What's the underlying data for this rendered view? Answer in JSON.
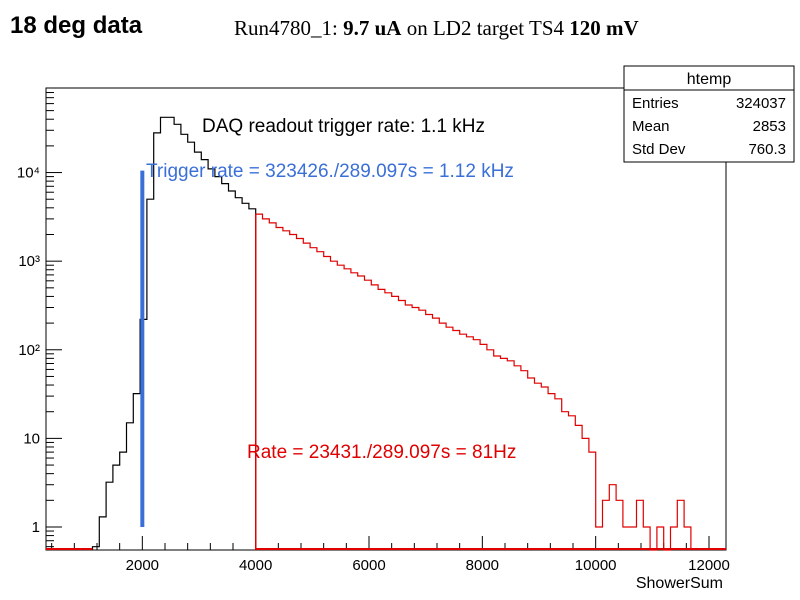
{
  "page": {
    "title": "18 deg data",
    "run_info": {
      "prefix": "Run4780_1: ",
      "current": "9.7 uA",
      "middle": " on LD2 target TS4 ",
      "voltage": "120 mV"
    }
  },
  "chart_data": {
    "type": "histogram",
    "yscale": "log",
    "xlim": [
      300,
      12300
    ],
    "ylim": [
      0.55,
      90000
    ],
    "xlabel": "ShowerSum",
    "x_ticks": [
      2000,
      4000,
      6000,
      8000,
      10000,
      12000
    ],
    "x_tick_labels": [
      "2000",
      "4000",
      "6000",
      "8000",
      "10000",
      "12000"
    ],
    "y_ticks": [
      1,
      10,
      100,
      1000,
      10000
    ],
    "y_tick_labels": [
      "1",
      "10",
      "10²",
      "10³",
      "10⁴"
    ],
    "bin_width": 120,
    "series": [
      {
        "color": "#000000",
        "x": [
          1120,
          1240,
          1360,
          1480,
          1600,
          1720,
          1840,
          1960,
          2080,
          2200,
          2320,
          2440,
          2560,
          2680,
          2800,
          2920,
          3040,
          3160,
          3280,
          3400,
          3520,
          3640,
          3760,
          3880
        ],
        "values": [
          0.6,
          1.3,
          3.2,
          5.0,
          7.0,
          15,
          32,
          220,
          5000,
          28000,
          42000,
          42000,
          35000,
          27000,
          22000,
          17000,
          14000,
          11000,
          9000,
          7500,
          6200,
          5200,
          4500,
          3900
        ]
      },
      {
        "color": "#e00000",
        "x": [
          4000,
          4120,
          4240,
          4360,
          4480,
          4600,
          4720,
          4840,
          4960,
          5080,
          5200,
          5320,
          5440,
          5560,
          5680,
          5800,
          5920,
          6040,
          6160,
          6280,
          6400,
          6520,
          6640,
          6760,
          6880,
          7000,
          7120,
          7240,
          7360,
          7480,
          7600,
          7720,
          7840,
          7960,
          8080,
          8200,
          8320,
          8440,
          8560,
          8680,
          8800,
          8920,
          9040,
          9160,
          9280,
          9400,
          9520,
          9640,
          9760,
          9880,
          10000,
          10120,
          10240,
          10360,
          10480,
          10600,
          10720,
          10840,
          10960,
          11080,
          11200,
          11320,
          11440,
          11560
        ],
        "values": [
          3400,
          3000,
          2700,
          2400,
          2200,
          2000,
          1800,
          1600,
          1420,
          1280,
          1130,
          1000,
          900,
          820,
          740,
          680,
          610,
          540,
          480,
          440,
          400,
          360,
          320,
          300,
          280,
          250,
          228,
          200,
          180,
          165,
          150,
          140,
          130,
          115,
          100,
          85,
          80,
          75,
          66,
          58,
          48,
          42,
          38,
          32,
          28,
          20,
          18,
          14,
          10,
          7,
          1,
          2,
          3,
          2,
          1,
          1,
          2,
          1,
          0.5,
          1,
          0.5,
          1,
          2,
          1
        ]
      }
    ],
    "markers": [
      {
        "x": 2000,
        "y_from": 1,
        "y_to": 10500,
        "color": "#3a6fd8"
      },
      {
        "x": 4000,
        "y_from": 0.55,
        "y_to": 3400,
        "color": "#e00000"
      }
    ],
    "stats_box": {
      "title": "htemp",
      "rows": [
        {
          "label": "Entries",
          "value": "324037"
        },
        {
          "label": "Mean",
          "value": "2853"
        },
        {
          "label": "Std Dev",
          "value": "760.3"
        }
      ]
    },
    "annotations": [
      {
        "text": "DAQ readout  trigger rate: 1.1 kHz",
        "color": "#000000"
      },
      {
        "text": "Trigger rate = 323426./289.097s = 1.12 kHz",
        "color": "#3a6fd8"
      },
      {
        "text": "Rate = 23431./289.097s = 81Hz",
        "color": "#e00000"
      }
    ]
  }
}
